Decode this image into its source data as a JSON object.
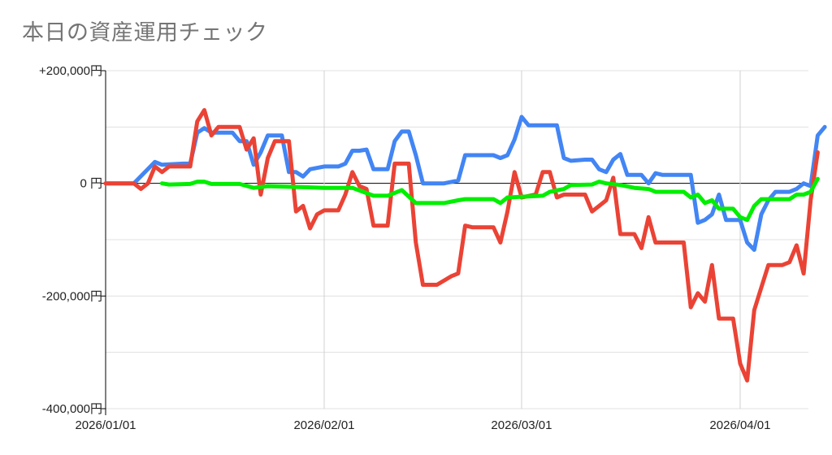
{
  "chart_data": {
    "type": "line",
    "title": "本日の資産運用チェック",
    "xlabel": "",
    "ylabel": "",
    "x_ticks": [
      {
        "label": "2026/01/01",
        "date": "2026-01-01"
      },
      {
        "label": "2026/02/01",
        "date": "2026-02-01"
      },
      {
        "label": "2026/03/01",
        "date": "2026-03-01"
      },
      {
        "label": "2026/04/01",
        "date": "2026-04-01"
      }
    ],
    "y_ticks": [
      {
        "label": "+200,000円",
        "value": 200000
      },
      {
        "label": "0 円",
        "value": 0
      },
      {
        "label": "-200,000円",
        "value": -200000
      },
      {
        "label": "-400,000円",
        "value": -400000
      }
    ],
    "xlim": [
      "2026-01-01",
      "2026-04-10"
    ],
    "ylim": [
      -400000,
      200000
    ],
    "grid": true,
    "legend": "none",
    "series": [
      {
        "color": "#4285f4",
        "points": [
          [
            "2026-01-01",
            0
          ],
          [
            "2026-01-05",
            0
          ],
          [
            "2026-01-08",
            38000
          ],
          [
            "2026-01-09",
            33000
          ],
          [
            "2026-01-12",
            35000
          ],
          [
            "2026-01-13",
            35000
          ],
          [
            "2026-01-14",
            90000
          ],
          [
            "2026-01-15",
            98000
          ],
          [
            "2026-01-16",
            90000
          ],
          [
            "2026-01-19",
            90000
          ],
          [
            "2026-01-20",
            75000
          ],
          [
            "2026-01-21",
            75000
          ],
          [
            "2026-01-22",
            33000
          ],
          [
            "2026-01-23",
            55000
          ],
          [
            "2026-01-24",
            85000
          ],
          [
            "2026-01-26",
            85000
          ],
          [
            "2026-01-27",
            20000
          ],
          [
            "2026-01-28",
            20000
          ],
          [
            "2026-01-29",
            12000
          ],
          [
            "2026-01-30",
            25000
          ],
          [
            "2026-02-01",
            30000
          ],
          [
            "2026-02-03",
            30000
          ],
          [
            "2026-02-04",
            35000
          ],
          [
            "2026-02-05",
            58000
          ],
          [
            "2026-02-06",
            58000
          ],
          [
            "2026-02-07",
            60000
          ],
          [
            "2026-02-08",
            25000
          ],
          [
            "2026-02-10",
            25000
          ],
          [
            "2026-02-11",
            75000
          ],
          [
            "2026-02-12",
            92000
          ],
          [
            "2026-02-13",
            92000
          ],
          [
            "2026-02-14",
            50000
          ],
          [
            "2026-02-15",
            0
          ],
          [
            "2026-02-18",
            0
          ],
          [
            "2026-02-20",
            5000
          ],
          [
            "2026-02-21",
            50000
          ],
          [
            "2026-02-25",
            50000
          ],
          [
            "2026-02-26",
            45000
          ],
          [
            "2026-02-27",
            50000
          ],
          [
            "2026-02-28",
            78000
          ],
          [
            "2026-03-01",
            118000
          ],
          [
            "2026-03-02",
            103000
          ],
          [
            "2026-03-06",
            103000
          ],
          [
            "2026-03-07",
            45000
          ],
          [
            "2026-03-08",
            40000
          ],
          [
            "2026-03-10",
            42000
          ],
          [
            "2026-03-11",
            42000
          ],
          [
            "2026-03-12",
            25000
          ],
          [
            "2026-03-13",
            20000
          ],
          [
            "2026-03-14",
            42000
          ],
          [
            "2026-03-15",
            52000
          ],
          [
            "2026-03-16",
            15000
          ],
          [
            "2026-03-18",
            15000
          ],
          [
            "2026-03-19",
            0
          ],
          [
            "2026-03-20",
            18000
          ],
          [
            "2026-03-21",
            15000
          ],
          [
            "2026-03-25",
            15000
          ],
          [
            "2026-03-26",
            -70000
          ],
          [
            "2026-03-27",
            -65000
          ],
          [
            "2026-03-28",
            -55000
          ],
          [
            "2026-03-29",
            -20000
          ],
          [
            "2026-03-30",
            -65000
          ],
          [
            "2026-04-01",
            -65000
          ],
          [
            "2026-04-02",
            -105000
          ],
          [
            "2026-04-03",
            -118000
          ],
          [
            "2026-04-04",
            -55000
          ],
          [
            "2026-04-05",
            -30000
          ],
          [
            "2026-04-06",
            -15000
          ],
          [
            "2026-04-08",
            -15000
          ],
          [
            "2026-04-09",
            -10000
          ],
          [
            "2026-04-10",
            0
          ],
          [
            "2026-04-11",
            -5000
          ],
          [
            "2026-04-12",
            85000
          ],
          [
            "2026-04-13",
            100000
          ]
        ]
      },
      {
        "color": "#ea4335",
        "points": [
          [
            "2026-01-01",
            0
          ],
          [
            "2026-01-05",
            0
          ],
          [
            "2026-01-06",
            -10000
          ],
          [
            "2026-01-07",
            0
          ],
          [
            "2026-01-08",
            30000
          ],
          [
            "2026-01-09",
            20000
          ],
          [
            "2026-01-10",
            30000
          ],
          [
            "2026-01-13",
            30000
          ],
          [
            "2026-01-14",
            110000
          ],
          [
            "2026-01-15",
            130000
          ],
          [
            "2026-01-16",
            85000
          ],
          [
            "2026-01-17",
            100000
          ],
          [
            "2026-01-20",
            100000
          ],
          [
            "2026-01-21",
            60000
          ],
          [
            "2026-01-22",
            80000
          ],
          [
            "2026-01-23",
            -20000
          ],
          [
            "2026-01-24",
            45000
          ],
          [
            "2026-01-25",
            75000
          ],
          [
            "2026-01-27",
            75000
          ],
          [
            "2026-01-28",
            -50000
          ],
          [
            "2026-01-29",
            -40000
          ],
          [
            "2026-01-30",
            -80000
          ],
          [
            "2026-01-31",
            -55000
          ],
          [
            "2026-02-01",
            -48000
          ],
          [
            "2026-02-03",
            -48000
          ],
          [
            "2026-02-04",
            -20000
          ],
          [
            "2026-02-05",
            20000
          ],
          [
            "2026-02-06",
            -5000
          ],
          [
            "2026-02-07",
            -10000
          ],
          [
            "2026-02-08",
            -75000
          ],
          [
            "2026-02-10",
            -75000
          ],
          [
            "2026-02-11",
            35000
          ],
          [
            "2026-02-13",
            35000
          ],
          [
            "2026-02-14",
            -105000
          ],
          [
            "2026-02-15",
            -180000
          ],
          [
            "2026-02-17",
            -180000
          ],
          [
            "2026-02-19",
            -165000
          ],
          [
            "2026-02-20",
            -160000
          ],
          [
            "2026-02-21",
            -75000
          ],
          [
            "2026-02-22",
            -78000
          ],
          [
            "2026-02-25",
            -78000
          ],
          [
            "2026-02-26",
            -105000
          ],
          [
            "2026-02-27",
            -50000
          ],
          [
            "2026-02-28",
            20000
          ],
          [
            "2026-03-01",
            -25000
          ],
          [
            "2026-03-03",
            -20000
          ],
          [
            "2026-03-04",
            20000
          ],
          [
            "2026-03-05",
            20000
          ],
          [
            "2026-03-06",
            -25000
          ],
          [
            "2026-03-07",
            -20000
          ],
          [
            "2026-03-10",
            -20000
          ],
          [
            "2026-03-11",
            -50000
          ],
          [
            "2026-03-12",
            -40000
          ],
          [
            "2026-03-13",
            -30000
          ],
          [
            "2026-03-14",
            10000
          ],
          [
            "2026-03-15",
            -90000
          ],
          [
            "2026-03-17",
            -90000
          ],
          [
            "2026-03-18",
            -115000
          ],
          [
            "2026-03-19",
            -60000
          ],
          [
            "2026-03-20",
            -105000
          ],
          [
            "2026-03-24",
            -105000
          ],
          [
            "2026-03-25",
            -220000
          ],
          [
            "2026-03-26",
            -195000
          ],
          [
            "2026-03-27",
            -210000
          ],
          [
            "2026-03-28",
            -145000
          ],
          [
            "2026-03-29",
            -240000
          ],
          [
            "2026-03-31",
            -240000
          ],
          [
            "2026-04-01",
            -320000
          ],
          [
            "2026-04-02",
            -350000
          ],
          [
            "2026-04-03",
            -225000
          ],
          [
            "2026-04-04",
            -185000
          ],
          [
            "2026-04-05",
            -145000
          ],
          [
            "2026-04-07",
            -145000
          ],
          [
            "2026-04-08",
            -140000
          ],
          [
            "2026-04-09",
            -110000
          ],
          [
            "2026-04-10",
            -160000
          ],
          [
            "2026-04-11",
            -30000
          ],
          [
            "2026-04-12",
            55000
          ]
        ]
      },
      {
        "color": "#00ee00",
        "points": [
          [
            "2026-01-09",
            0
          ],
          [
            "2026-01-10",
            -2000
          ],
          [
            "2026-01-13",
            -1000
          ],
          [
            "2026-01-14",
            3000
          ],
          [
            "2026-01-15",
            3000
          ],
          [
            "2026-01-16",
            -1000
          ],
          [
            "2026-01-20",
            -1000
          ],
          [
            "2026-01-22",
            -8000
          ],
          [
            "2026-01-24",
            -5000
          ],
          [
            "2026-02-01",
            -8000
          ],
          [
            "2026-02-05",
            -8000
          ],
          [
            "2026-02-08",
            -22000
          ],
          [
            "2026-02-10",
            -22000
          ],
          [
            "2026-02-12",
            -12000
          ],
          [
            "2026-02-14",
            -35000
          ],
          [
            "2026-02-18",
            -35000
          ],
          [
            "2026-02-20",
            -30000
          ],
          [
            "2026-02-21",
            -28000
          ],
          [
            "2026-02-25",
            -28000
          ],
          [
            "2026-02-26",
            -35000
          ],
          [
            "2026-02-27",
            -25000
          ],
          [
            "2026-03-04",
            -22000
          ],
          [
            "2026-03-05",
            -15000
          ],
          [
            "2026-03-07",
            -10000
          ],
          [
            "2026-03-08",
            -3000
          ],
          [
            "2026-03-11",
            -2000
          ],
          [
            "2026-03-12",
            3000
          ],
          [
            "2026-03-13",
            0
          ],
          [
            "2026-03-15",
            -3000
          ],
          [
            "2026-03-17",
            -8000
          ],
          [
            "2026-03-19",
            -10000
          ],
          [
            "2026-03-20",
            -15000
          ],
          [
            "2026-03-24",
            -15000
          ],
          [
            "2026-03-25",
            -25000
          ],
          [
            "2026-03-26",
            -20000
          ],
          [
            "2026-03-27",
            -35000
          ],
          [
            "2026-03-28",
            -30000
          ],
          [
            "2026-03-29",
            -45000
          ],
          [
            "2026-03-31",
            -45000
          ],
          [
            "2026-04-01",
            -60000
          ],
          [
            "2026-04-02",
            -65000
          ],
          [
            "2026-04-03",
            -40000
          ],
          [
            "2026-04-04",
            -28000
          ],
          [
            "2026-04-08",
            -28000
          ],
          [
            "2026-04-09",
            -20000
          ],
          [
            "2026-04-10",
            -20000
          ],
          [
            "2026-04-11",
            -15000
          ],
          [
            "2026-04-12",
            8000
          ]
        ]
      }
    ]
  }
}
